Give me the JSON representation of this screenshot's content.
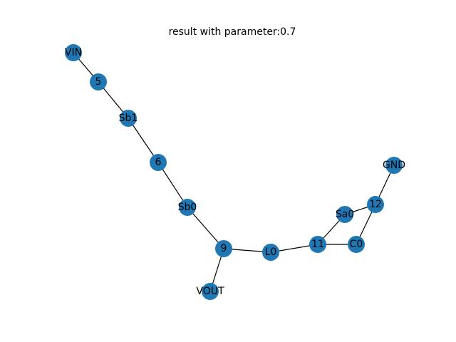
{
  "title": "result with parameter:0.7",
  "colors": {
    "node_fill": "#1f77b4",
    "edge": "#000000",
    "label": "#000000",
    "background": "#ffffff"
  },
  "graph": {
    "nodes": [
      {
        "id": "VIN",
        "label": "VIN"
      },
      {
        "id": "5",
        "label": "5"
      },
      {
        "id": "Sb1",
        "label": "Sb1"
      },
      {
        "id": "6",
        "label": "6"
      },
      {
        "id": "Sb0",
        "label": "Sb0"
      },
      {
        "id": "9",
        "label": "9"
      },
      {
        "id": "VOUT",
        "label": "VOUT"
      },
      {
        "id": "L0",
        "label": "L0"
      },
      {
        "id": "11",
        "label": "11"
      },
      {
        "id": "C0",
        "label": "C0"
      },
      {
        "id": "Sa0",
        "label": "Sa0"
      },
      {
        "id": "12",
        "label": "12"
      },
      {
        "id": "GND",
        "label": "GND"
      }
    ],
    "edges": [
      [
        "VIN",
        "5"
      ],
      [
        "5",
        "Sb1"
      ],
      [
        "Sb1",
        "6"
      ],
      [
        "6",
        "Sb0"
      ],
      [
        "Sb0",
        "9"
      ],
      [
        "9",
        "VOUT"
      ],
      [
        "9",
        "L0"
      ],
      [
        "L0",
        "11"
      ],
      [
        "11",
        "C0"
      ],
      [
        "11",
        "Sa0"
      ],
      [
        "Sa0",
        "12"
      ],
      [
        "C0",
        "12"
      ],
      [
        "12",
        "GND"
      ]
    ]
  }
}
